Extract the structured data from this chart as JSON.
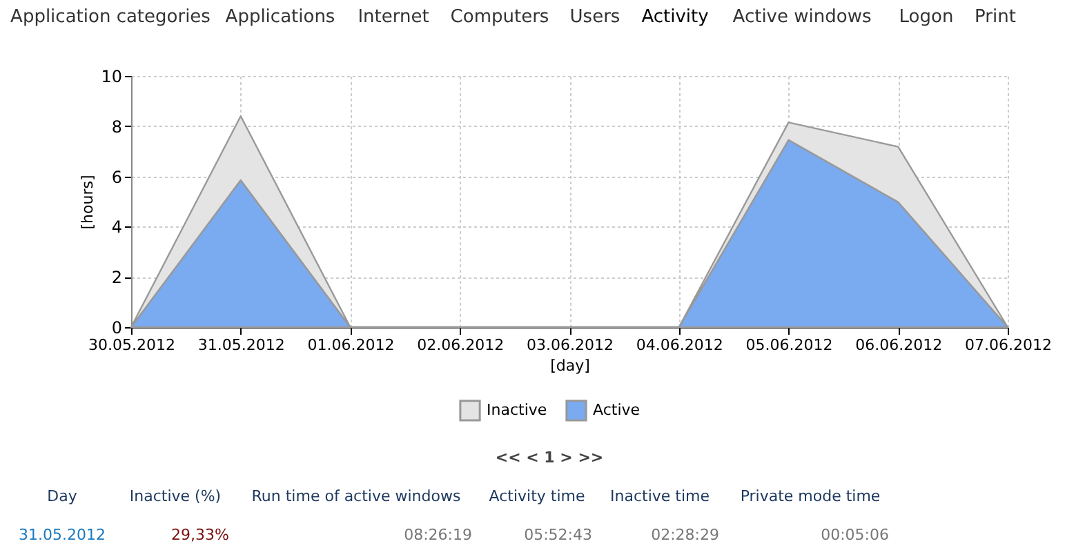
{
  "chart_data": {
    "type": "area",
    "stacked": true,
    "categories": [
      "30.05.2012",
      "31.05.2012",
      "01.06.2012",
      "02.06.2012",
      "03.06.2012",
      "04.06.2012",
      "05.06.2012",
      "06.06.2012",
      "07.06.2012"
    ],
    "series": [
      {
        "name": "Active",
        "color": "#7aaaf0",
        "values": [
          0,
          5.85,
          0,
          0,
          0,
          0,
          7.45,
          4.98,
          0
        ]
      },
      {
        "name": "Inactive",
        "color": "#e4e4e4",
        "values": [
          0,
          2.55,
          0,
          0,
          0,
          0,
          0.7,
          2.2,
          0
        ]
      }
    ],
    "ylim": [
      0,
      10
    ],
    "yticks": [
      0,
      2,
      4,
      6,
      8,
      10
    ],
    "xlabel": "[day]",
    "ylabel": "[hours]",
    "grid": true,
    "legend": "bottom",
    "annotations": [
      "Application categories",
      "Applications",
      "Internet",
      "Computers",
      "Users",
      "Activity",
      "Active windows",
      "Logon",
      "Print",
      "<< < 1 > >>",
      "Day",
      "Inactive (%)",
      "Run time of active windows",
      "Activity time",
      "Inactive time",
      "Private mode time",
      "31.05.2012",
      "29,33%",
      "08:26:19",
      "05:52:43",
      "02:28:29",
      "00:05:06"
    ]
  }
}
